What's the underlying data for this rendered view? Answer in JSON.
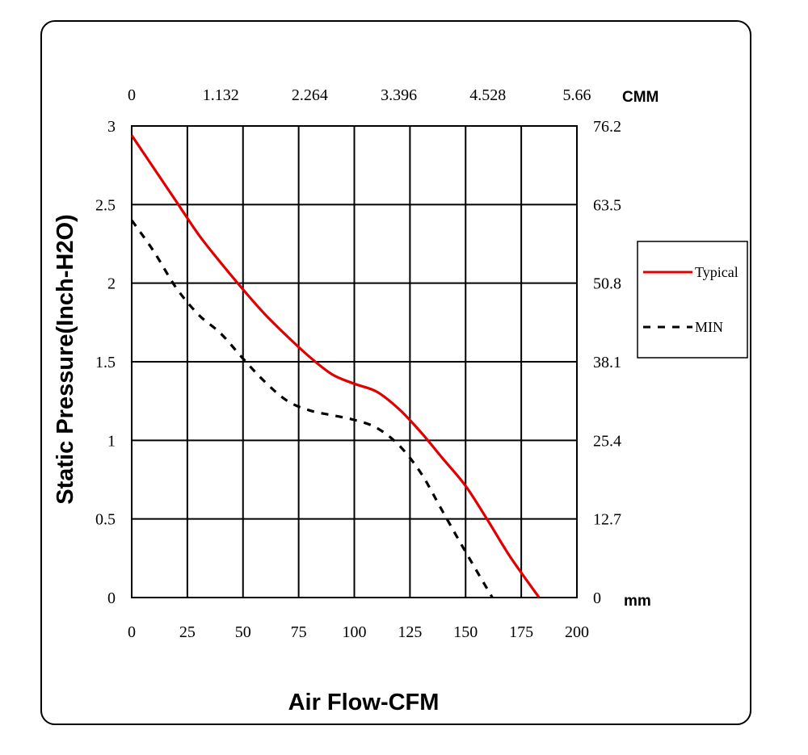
{
  "chart_data": {
    "type": "line",
    "title": "",
    "xlabel": "Air Flow-CFM",
    "ylabel": "Static Pressure(Inch-H2O)",
    "xlim": [
      0,
      200
    ],
    "ylim": [
      0,
      3
    ],
    "grid": true,
    "legend_position": "right",
    "x_ticks": [
      "0",
      "25",
      "50",
      "75",
      "100",
      "125",
      "150",
      "175",
      "200"
    ],
    "y_ticks": [
      "0",
      "0.5",
      "1",
      "1.5",
      "2",
      "2.5",
      "3"
    ],
    "top_axis": {
      "unit": "CMM",
      "ticks": [
        "0",
        "1.132",
        "2.264",
        "3.396",
        "4.528",
        "5.66"
      ]
    },
    "right_axis": {
      "unit": "mm",
      "ticks": [
        "0",
        "12.7",
        "25.4",
        "38.1",
        "50.8",
        "63.5",
        "76.2"
      ]
    },
    "series": [
      {
        "name": "Typical",
        "color": "#e00000",
        "style": "solid",
        "x": [
          0,
          10,
          20,
          30,
          40,
          50,
          60,
          70,
          80,
          90,
          100,
          110,
          120,
          130,
          140,
          150,
          160,
          170,
          183
        ],
        "y": [
          2.94,
          2.73,
          2.52,
          2.31,
          2.13,
          1.96,
          1.8,
          1.66,
          1.53,
          1.42,
          1.36,
          1.31,
          1.2,
          1.05,
          0.88,
          0.71,
          0.49,
          0.26,
          0.0
        ]
      },
      {
        "name": "MIN",
        "color": "#000000",
        "style": "dashed",
        "x": [
          0,
          10,
          20,
          30,
          40,
          50,
          60,
          70,
          80,
          90,
          100,
          110,
          120,
          130,
          140,
          150,
          162
        ],
        "y": [
          2.4,
          2.2,
          1.97,
          1.8,
          1.68,
          1.52,
          1.37,
          1.25,
          1.19,
          1.16,
          1.13,
          1.08,
          0.97,
          0.79,
          0.54,
          0.29,
          0.0
        ]
      }
    ]
  }
}
